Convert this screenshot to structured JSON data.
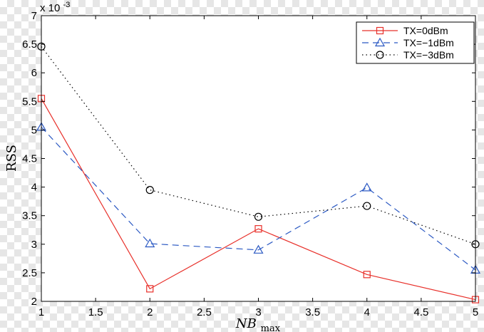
{
  "chart_data": {
    "type": "line",
    "title": "",
    "xlabel": "NB",
    "xlabel_sub": "max",
    "ylabel": "RSS",
    "y_multiplier_base": "x 10",
    "y_multiplier_exp": "-3",
    "xlim": [
      1,
      5
    ],
    "ylim": [
      2,
      7
    ],
    "x_ticks": [
      1,
      1.5,
      2,
      2.5,
      3,
      3.5,
      4,
      4.5,
      5
    ],
    "x_tick_labels": [
      "1",
      "1.5",
      "2",
      "2.5",
      "3",
      "3.5",
      "4",
      "4.5",
      "5"
    ],
    "y_ticks": [
      2,
      2.5,
      3,
      3.5,
      4,
      4.5,
      5,
      5.5,
      6,
      6.5,
      7
    ],
    "y_tick_labels": [
      "2",
      "2.5",
      "3",
      "3.5",
      "4",
      "4.5",
      "5",
      "5.5",
      "6",
      "6.5",
      "7"
    ],
    "grid": false,
    "legend_position": "top-right",
    "x": [
      1,
      2,
      3,
      4,
      5
    ],
    "series": [
      {
        "name": "TX=0dBm",
        "values": [
          5.55,
          2.22,
          3.27,
          2.47,
          2.03
        ],
        "color": "#e8302a",
        "dash": "solid",
        "marker": "square"
      },
      {
        "name": "TX=−1dBm",
        "values": [
          5.05,
          3.01,
          2.9,
          3.99,
          2.55
        ],
        "color": "#2b59c3",
        "dash": "dashed",
        "marker": "triangle"
      },
      {
        "name": "TX=−3dBm",
        "values": [
          6.46,
          3.95,
          3.48,
          3.67,
          3.0
        ],
        "color": "#000000",
        "dash": "dotted",
        "marker": "circle"
      }
    ]
  }
}
